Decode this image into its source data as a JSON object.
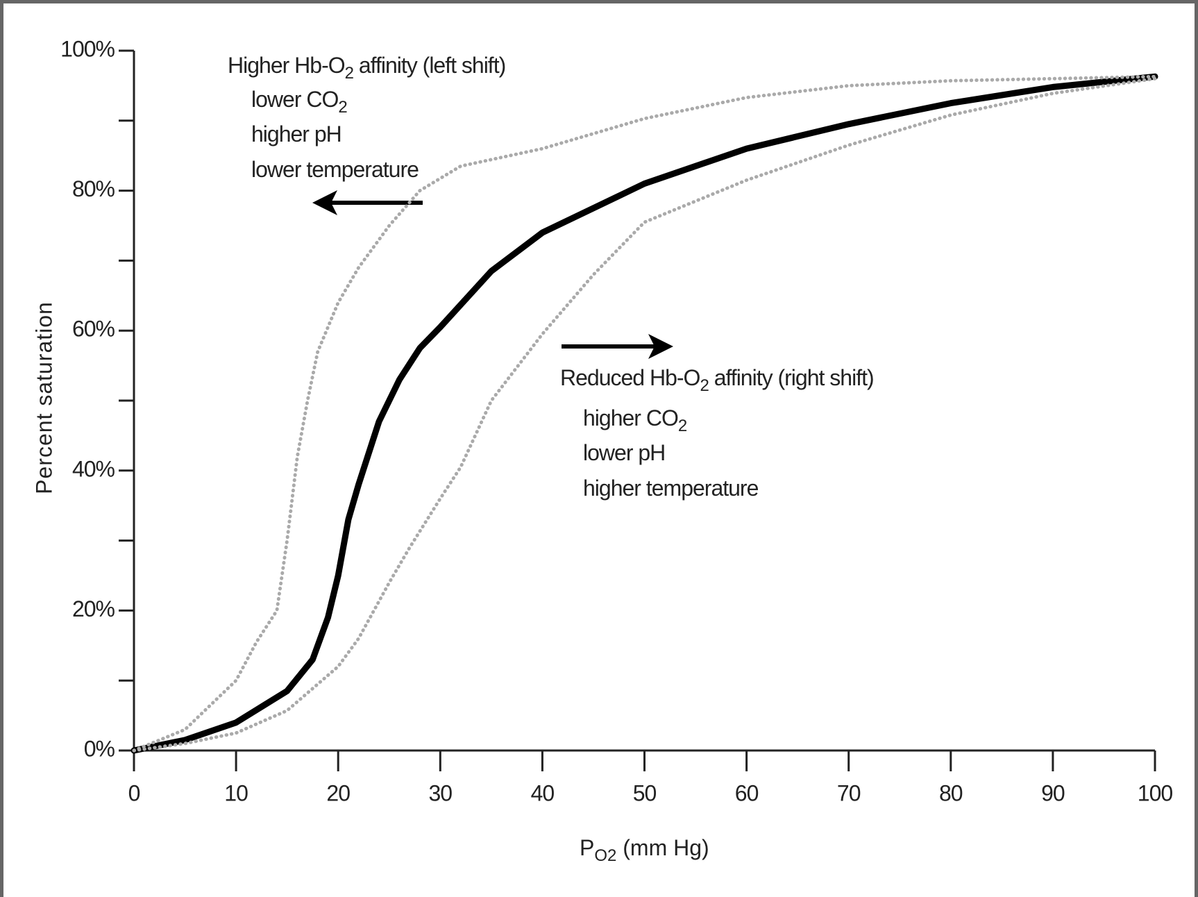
{
  "chart_data": {
    "type": "line",
    "x_label": {
      "text": "P",
      "subscript": "O2",
      "rest": " (mm Hg)"
    },
    "y_label": "Percent saturation",
    "xlim": [
      0,
      100
    ],
    "xticks": [
      0,
      10,
      20,
      30,
      40,
      50,
      60,
      70,
      80,
      90,
      100
    ],
    "ylim": [
      0,
      100
    ],
    "yticks": [
      {
        "value": 0,
        "label": "0%"
      },
      {
        "value": 20,
        "label": "20%"
      },
      {
        "value": 40,
        "label": "40%"
      },
      {
        "value": 60,
        "label": "60%"
      },
      {
        "value": 80,
        "label": "80%"
      },
      {
        "value": 100,
        "label": "100%"
      }
    ],
    "yminor_ticks": [
      10,
      30,
      50,
      70,
      90
    ],
    "series": [
      {
        "color": "#000000",
        "style": "solid",
        "x": [
          0,
          5,
          10,
          15,
          17.5,
          19,
          20,
          21,
          22,
          24,
          26,
          28,
          30,
          35,
          40,
          50,
          60,
          70,
          80,
          90,
          100
        ],
        "values": [
          0,
          1.5,
          4,
          8.5,
          13,
          19,
          25,
          33,
          38,
          47,
          53,
          57.5,
          60.5,
          68.5,
          74,
          81,
          86,
          89.5,
          92.5,
          94.8,
          96.3
        ]
      },
      {
        "color": "#aaaaaa",
        "style": "dotted",
        "x": [
          0,
          5,
          10,
          12,
          14,
          15,
          16,
          17,
          18,
          20,
          22,
          25,
          28,
          32,
          40,
          50,
          60,
          70,
          80,
          90,
          100
        ],
        "values": [
          0,
          3,
          10,
          15.5,
          20,
          30,
          42,
          50,
          57,
          64,
          69,
          75,
          80,
          83.5,
          86,
          90.3,
          93.3,
          95,
          95.7,
          96,
          96.3
        ]
      },
      {
        "color": "#aaaaaa",
        "style": "dotted",
        "x": [
          0,
          5,
          10,
          15,
          20,
          22,
          25,
          27,
          30,
          32,
          35,
          40,
          45,
          50,
          60,
          70,
          80,
          90,
          100
        ],
        "values": [
          0,
          1,
          2.5,
          5.7,
          12,
          16,
          24,
          29,
          36,
          40.5,
          50,
          59.5,
          68,
          75.5,
          81.5,
          86.5,
          90.8,
          93.9,
          96
        ]
      }
    ],
    "annotations": [
      {
        "lines": [
          {
            "text": "Higher Hb-O",
            "subscript": "2",
            "rest": " affinity (left shift)"
          },
          {
            "text": "lower CO",
            "subscript": "2"
          },
          {
            "text": "higher pH"
          },
          {
            "text": "lower temperature"
          }
        ]
      },
      {
        "lines": [
          {
            "text": "Reduced Hb-O",
            "subscript": "2",
            "rest": " affinity (right shift)"
          },
          {
            "text": "higher CO",
            "subscript": "2"
          },
          {
            "text": "lower pH"
          },
          {
            "text": "higher temperature"
          }
        ]
      }
    ]
  }
}
